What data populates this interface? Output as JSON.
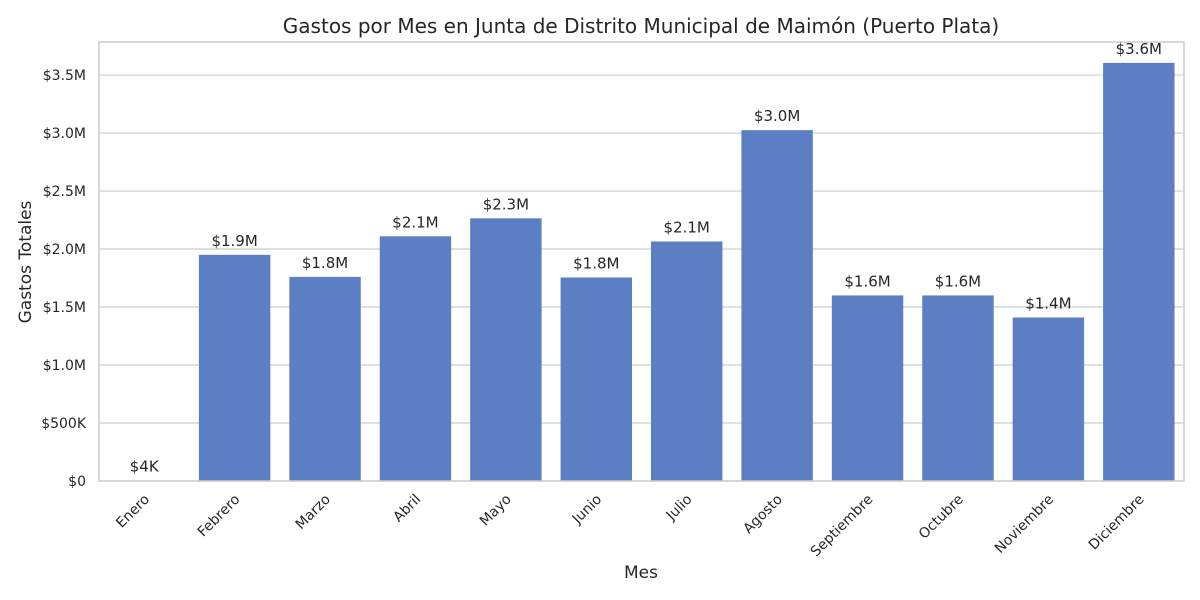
{
  "chart_data": {
    "type": "bar",
    "title": "Gastos por Mes en Junta de Distrito Municipal de Maimón (Puerto Plata)",
    "xlabel": "Mes",
    "ylabel": "Gastos Totales",
    "categories": [
      "Enero",
      "Febrero",
      "Marzo",
      "Abril",
      "Mayo",
      "Junio",
      "Julio",
      "Agosto",
      "Septiembre",
      "Octubre",
      "Noviembre",
      "Diciembre"
    ],
    "values": [
      4000,
      1950000,
      1760000,
      2110000,
      2265000,
      1755000,
      2065000,
      3025000,
      1600000,
      1600000,
      1410000,
      3605000
    ],
    "data_labels": [
      "$4K",
      "$1.9M",
      "$1.8M",
      "$2.1M",
      "$2.3M",
      "$1.8M",
      "$2.1M",
      "$3.0M",
      "$1.6M",
      "$1.6M",
      "$1.4M",
      "$3.6M"
    ],
    "ylim": [
      0,
      3785000
    ],
    "yticks": [
      0,
      500000,
      1000000,
      1500000,
      2000000,
      2500000,
      3000000,
      3500000
    ],
    "ytick_labels": [
      "$0",
      "$500K",
      "$1.0M",
      "$1.5M",
      "$2.0M",
      "$2.5M",
      "$3.0M",
      "$3.5M"
    ],
    "grid": "horizontal",
    "bar_color": "#5b7fc2",
    "grid_color": "#cccccc",
    "frame_color": "#cccccc",
    "text_color": "#262626"
  }
}
